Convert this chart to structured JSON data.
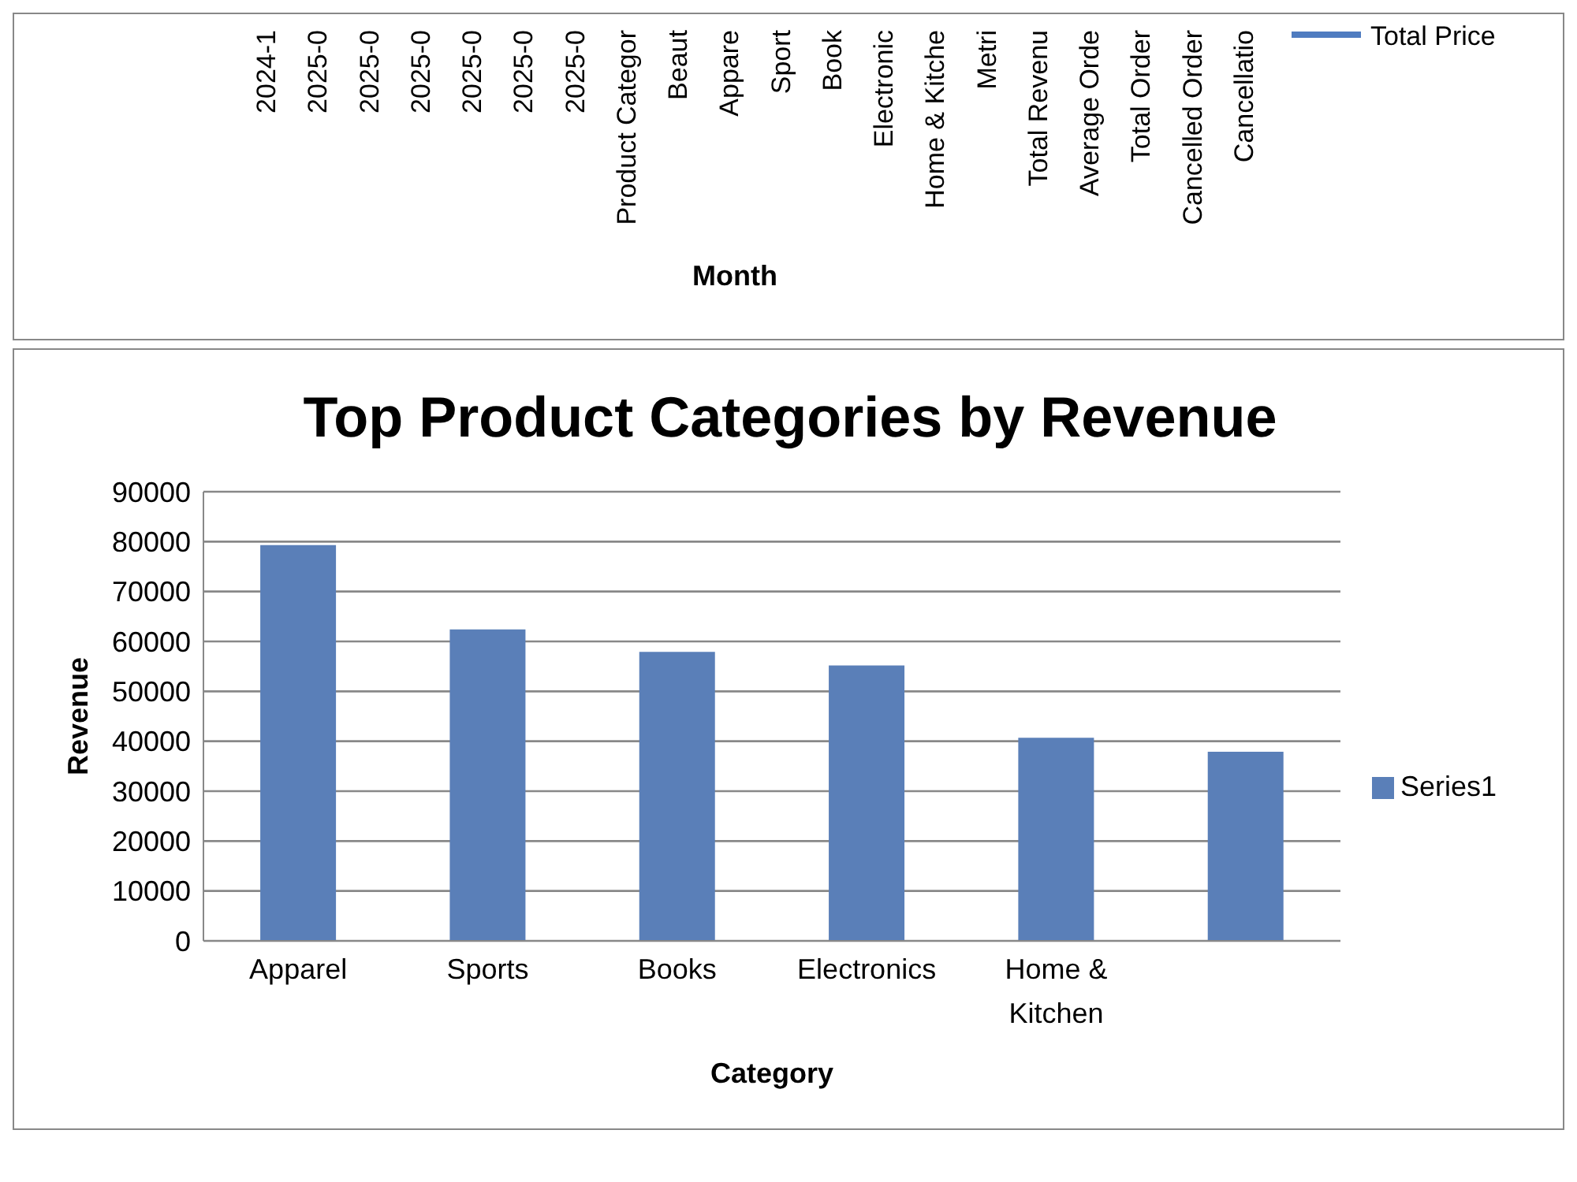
{
  "chart_data": [
    {
      "type": "other",
      "xlabel": "Month",
      "annotations": [
        "2024-1",
        "2025-0",
        "2025-0",
        "2025-0",
        "2025-0",
        "2025-0",
        "2025-0",
        "Product Categor",
        "Beaut",
        "Appare",
        "Sport",
        "Book",
        "Electronic",
        "Home & Kitche",
        "Metri",
        "Total Revenu",
        "Average Orde",
        "Total Order",
        "Cancelled Order",
        "Cancellatio",
        "Total Price"
      ]
    },
    {
      "type": "bar",
      "title": "Top Product Categories by Revenue",
      "xlabel": "Category",
      "ylabel": "Revenue",
      "categories": [
        "Apparel",
        "Sports",
        "Books",
        "Electronics",
        "Home & Kitchen",
        null
      ],
      "series": [
        {
          "name": "Series1",
          "color": "#5a7fb8",
          "values": [
            79300,
            62400,
            57900,
            55200,
            40700,
            37900
          ]
        }
      ],
      "ylim": [
        0,
        90000
      ],
      "yticks": [
        0,
        10000,
        20000,
        30000,
        40000,
        50000,
        60000,
        70000,
        80000,
        90000
      ],
      "grid": "y",
      "legend": "right"
    }
  ]
}
